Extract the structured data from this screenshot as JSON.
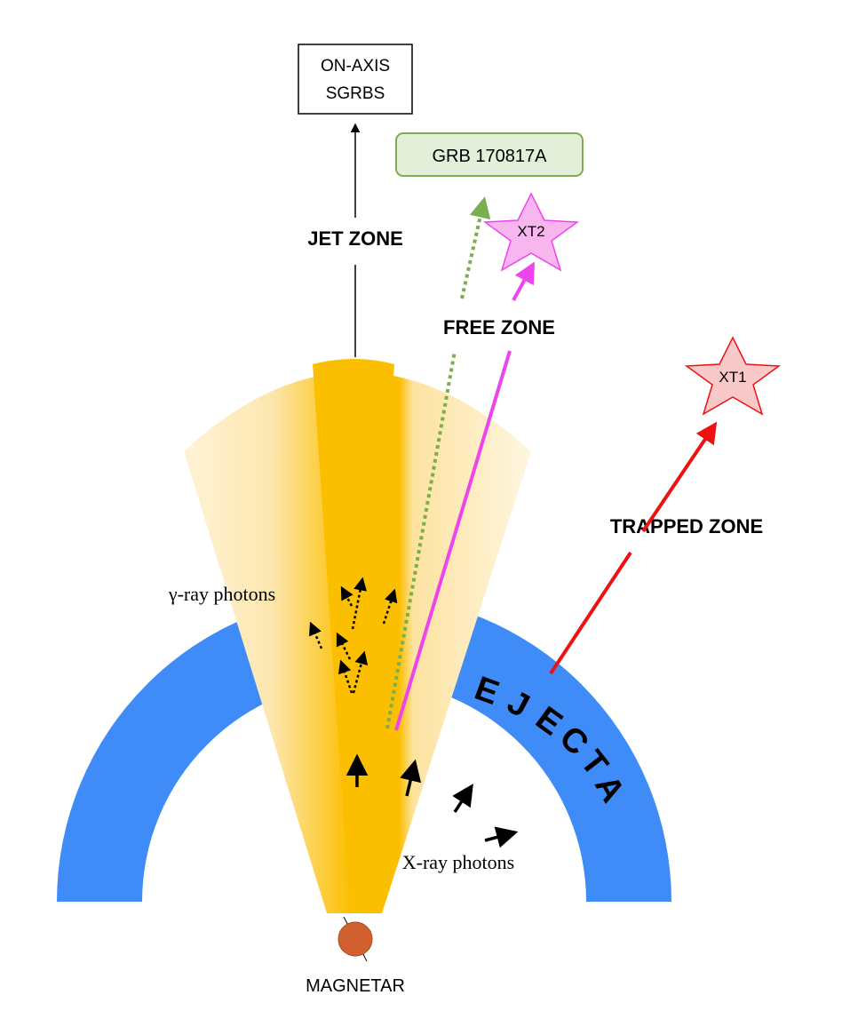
{
  "labels": {
    "on_axis_line1": "ON-AXIS",
    "on_axis_line2": "SGRBS",
    "grb": "GRB 170817A",
    "jet_zone": "JET ZONE",
    "free_zone": "FREE ZONE",
    "trapped_zone": "TRAPPED ZONE",
    "xt2": "XT2",
    "xt1": "XT1",
    "gamma_photons": "γ-ray photons",
    "xray_photons": "X-ray photons",
    "ejecta": "EJECTA",
    "magnetar": "MAGNETAR"
  },
  "colors": {
    "ejecta": "#3f8cf8",
    "jet_core": "#fcbf00",
    "jet_cone": "#fde9b4",
    "jet_cone_light": "#fff8e6",
    "magnetar": "#d2602e",
    "grb_box_fill": "#e3efd8",
    "grb_box_border": "#7aae4e",
    "grb_arrow": "#7aae4e",
    "xt2_arrow": "#ee44ee",
    "xt2_star_fill": "#f7b6ee",
    "xt1_arrow": "#ee1111",
    "xt1_star_fill": "#f9c9c9"
  }
}
